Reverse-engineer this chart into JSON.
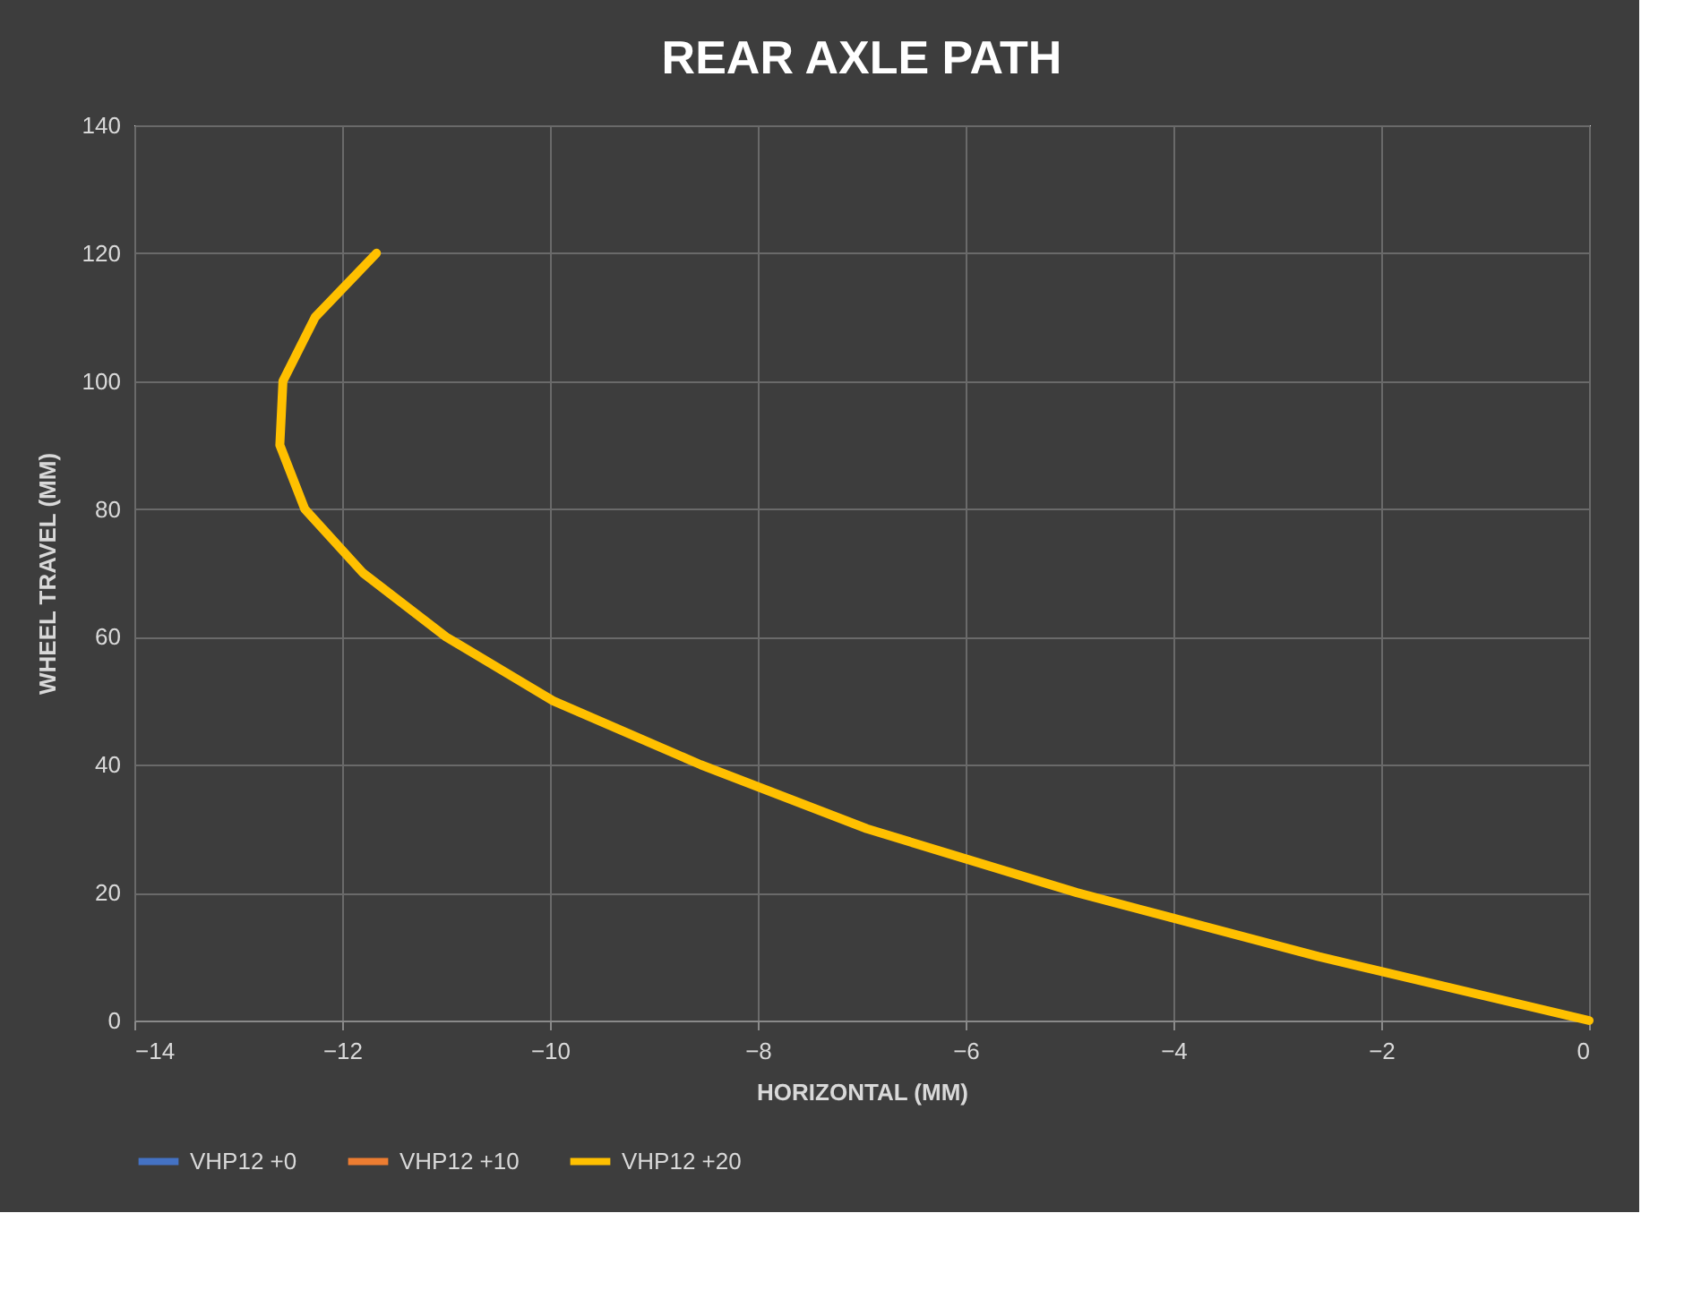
{
  "chart_data": {
    "type": "line",
    "title": "REAR AXLE PATH",
    "xlabel": "HORIZONTAL (MM)",
    "ylabel": "WHEEL TRAVEL (MM)",
    "x": [
      0,
      -2.6,
      -4.93,
      -6.95,
      -8.55,
      -9.97,
      -11.0,
      -11.8,
      -12.36,
      -12.6,
      -12.57,
      -12.26,
      -11.67
    ],
    "series": [
      {
        "name": "VHP12 +0",
        "color": "#4472c4",
        "values": [
          null,
          null,
          null,
          null,
          null,
          null,
          null,
          null,
          null,
          null,
          null,
          null,
          null
        ]
      },
      {
        "name": "VHP12 +10",
        "color": "#ed7d31",
        "values": [
          null,
          null,
          null,
          null,
          null,
          null,
          null,
          null,
          null,
          null,
          null,
          null,
          null
        ]
      },
      {
        "name": "VHP12 +20",
        "color": "#ffc000",
        "values": [
          0,
          10,
          20,
          30,
          40,
          50,
          60,
          70,
          80,
          90,
          100,
          110,
          120
        ]
      }
    ],
    "xlim": [
      -14,
      0
    ],
    "xticks": [
      -14,
      -12,
      -10,
      -8,
      -6,
      -4,
      -2,
      0
    ],
    "ylim": [
      0,
      140
    ],
    "yticks": [
      0,
      20,
      40,
      60,
      80,
      100,
      120,
      140
    ],
    "grid": true,
    "legend": "bottom",
    "marker": "none",
    "line_style": "solid"
  }
}
